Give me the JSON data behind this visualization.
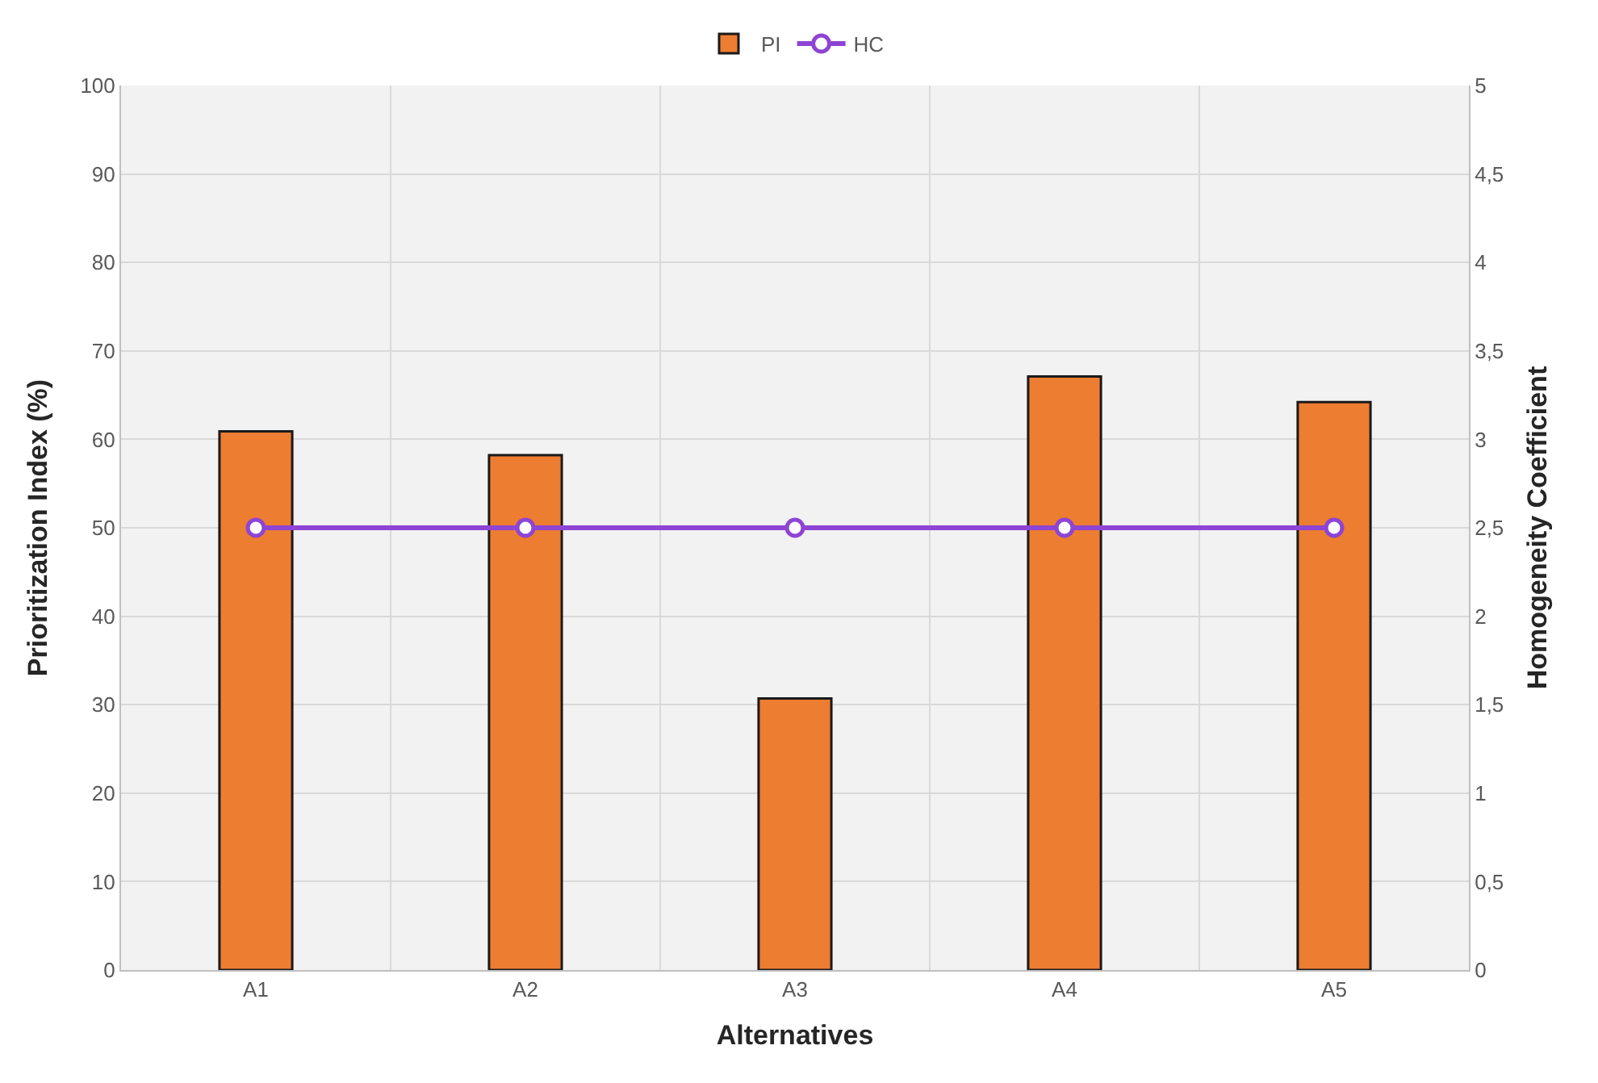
{
  "chart_data": {
    "type": "bar",
    "xlabel": "Alternatives",
    "ylabel": "Prioritization Index (%)",
    "y2label": "Homogeneity Coefficient",
    "categories": [
      "A1",
      "A2",
      "A3",
      "A4",
      "A5"
    ],
    "series": [
      {
        "name": "PI",
        "color": "#ed7d31",
        "values": [
          60.9,
          58.2,
          30.7,
          67.1,
          64.2
        ]
      },
      {
        "name": "HC",
        "type": "line",
        "axis": "y2",
        "color": "#8e44d4",
        "marker": "circle",
        "values": [
          2.5,
          2.5,
          2.5,
          2.5,
          2.5
        ]
      }
    ],
    "ylim": [
      0,
      100
    ],
    "yticks": [
      0,
      10,
      20,
      30,
      40,
      50,
      60,
      70,
      80,
      90,
      100
    ],
    "y2lim": [
      0,
      5
    ],
    "y2ticks": [
      0,
      {
        "value": 0.5,
        "label": "0,5"
      },
      1,
      {
        "value": 1.5,
        "label": "1,5"
      },
      2,
      {
        "value": 2.5,
        "label": "2,5"
      },
      3,
      {
        "value": 3.5,
        "label": "3,5"
      },
      4,
      {
        "value": 4.5,
        "label": "4,5"
      },
      5
    ],
    "grid": true,
    "legend": "top"
  }
}
